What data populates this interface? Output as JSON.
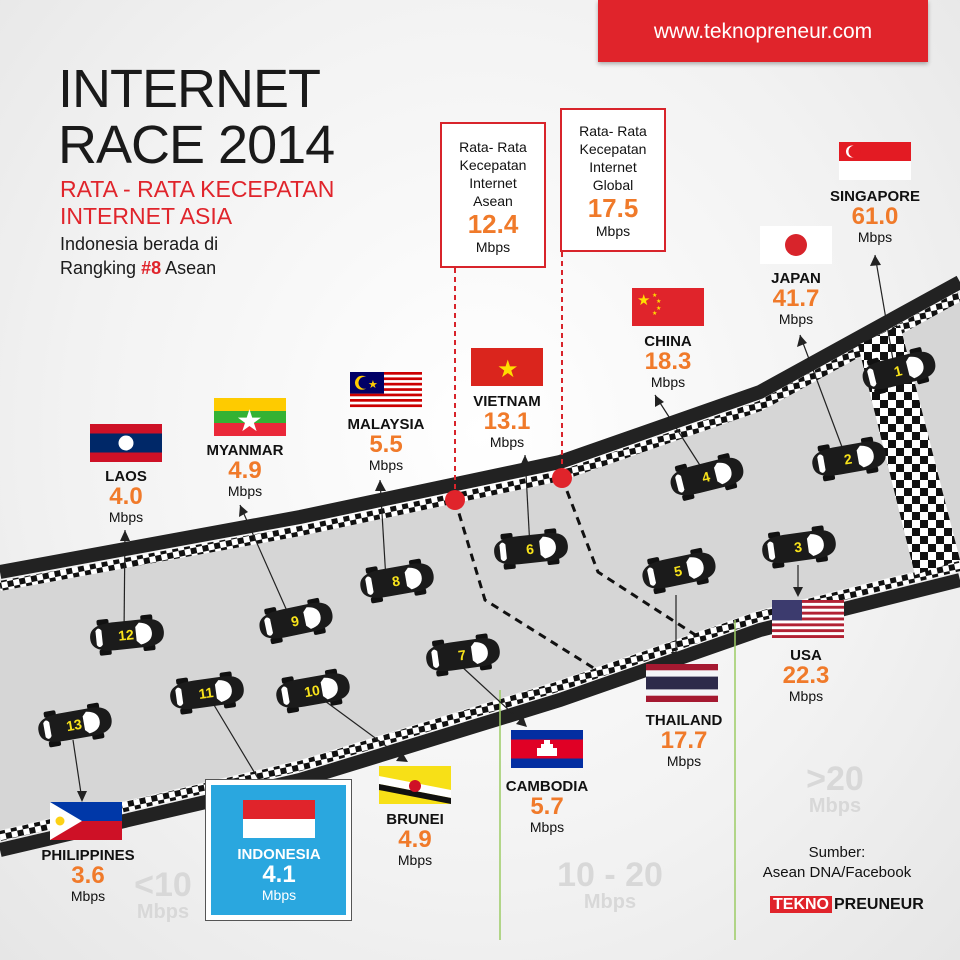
{
  "header": {
    "website": "www.teknopreneur.com"
  },
  "title": {
    "line1": "INTERNET",
    "line2": "RACE 2014",
    "subtitle1": "RATA - RATA KECEPATAN",
    "subtitle2": "INTERNET ASIA",
    "note1": "Indonesia berada di",
    "note2_prefix": "Rangking",
    "note2_rank": "#8",
    "note2_suffix": "Asean"
  },
  "callouts": {
    "asean": {
      "line1": "Rata- Rata",
      "line2": "Kecepatan",
      "line3": "Internet",
      "line4": "Asean",
      "value": "12.4",
      "unit": "Mbps"
    },
    "global": {
      "line1": "Rata- Rata",
      "line2": "Kecepatan",
      "line3": "Internet",
      "line4": "Global",
      "value": "17.5",
      "unit": "Mbps"
    }
  },
  "unit": "Mbps",
  "countries": [
    {
      "rank": "1",
      "name": "SINGAPORE",
      "value": "61.0",
      "flag": "singapore-flag"
    },
    {
      "rank": "2",
      "name": "JAPAN",
      "value": "41.7",
      "flag": "japan-flag"
    },
    {
      "rank": "3",
      "name": "USA",
      "value": "22.3",
      "flag": "usa-flag"
    },
    {
      "rank": "4",
      "name": "CHINA",
      "value": "18.3",
      "flag": "china-flag"
    },
    {
      "rank": "5",
      "name": "THAILAND",
      "value": "17.7",
      "flag": "thailand-flag"
    },
    {
      "rank": "6",
      "name": "VIETNAM",
      "value": "13.1",
      "flag": "vietnam-flag"
    },
    {
      "rank": "7",
      "name": "CAMBODIA",
      "value": "5.7",
      "flag": "cambodia-flag"
    },
    {
      "rank": "8",
      "name": "MALAYSIA",
      "value": "5.5",
      "flag": "malaysia-flag"
    },
    {
      "rank": "9",
      "name": "MYANMAR",
      "value": "4.9",
      "flag": "myanmar-flag"
    },
    {
      "rank": "10",
      "name": "BRUNEI",
      "value": "4.9",
      "flag": "brunei-flag"
    },
    {
      "rank": "11",
      "name": "INDONESIA",
      "value": "4.1",
      "flag": "indonesia-flag"
    },
    {
      "rank": "12",
      "name": "LAOS",
      "value": "4.0",
      "flag": "laos-flag"
    },
    {
      "rank": "13",
      "name": "PHILIPPINES",
      "value": "3.6",
      "flag": "philippines-flag"
    }
  ],
  "zones": {
    "low": {
      "label": "<10",
      "unit": "Mbps"
    },
    "mid": {
      "label": "10 - 20",
      "unit": "Mbps"
    },
    "high": {
      "label": ">20",
      "unit": "Mbps"
    }
  },
  "source": {
    "line1": "Sumber:",
    "line2": "Asean DNA/Facebook"
  },
  "logo": {
    "part1": "TEKNO",
    "part2": "PREUNEUR"
  },
  "colors": {
    "accent_red": "#d8242b",
    "value_orange": "#f07a2a",
    "indonesia_box": "#2aa7df"
  }
}
